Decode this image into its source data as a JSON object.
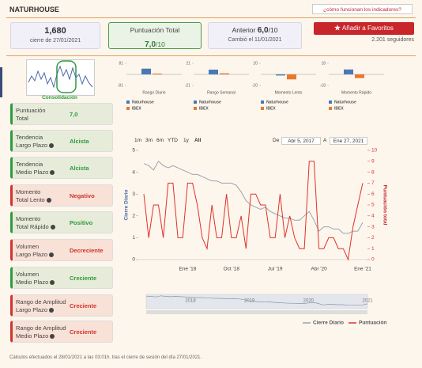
{
  "header": {
    "title": "NATURHOUSE",
    "help_link": "¿cómo funcionan los indicadores?"
  },
  "stats": {
    "close": {
      "value": "1,680",
      "caption": "cierre de 27/01/2021"
    },
    "score": {
      "label": "Puntuación Total",
      "value": "7,0",
      "scale": "/10"
    },
    "previous": {
      "label": "Anterior",
      "value": "6,0",
      "scale": "/10",
      "caption": "Cambió el 11/01/2021"
    },
    "favorite_button": "Añadir a Favoritos",
    "followers": "2.201 seguidores"
  },
  "pattern": {
    "label": "Consolidación"
  },
  "indicators": [
    {
      "label_lines": [
        "Puntuación",
        "Total"
      ],
      "value": "7,0",
      "color": "#2f9a3f",
      "info": false
    },
    {
      "label_lines": [
        "Tendencia",
        "Largo Plazo"
      ],
      "value": "Alcista",
      "color": "#2f9a3f",
      "info": true
    },
    {
      "label_lines": [
        "Tendencia",
        "Medio Plazo"
      ],
      "value": "Alcista",
      "color": "#2f9a3f",
      "info": true
    },
    {
      "label_lines": [
        "Momento",
        "Total Lento"
      ],
      "value": "Negativo",
      "color": "#d0342c",
      "info": true
    },
    {
      "label_lines": [
        "Momento",
        "Total Rápido"
      ],
      "value": "Positivo",
      "color": "#2f9a3f",
      "info": true
    },
    {
      "label_lines": [
        "Volumen",
        "Largo Plazo"
      ],
      "value": "Decreciente",
      "color": "#d0342c",
      "info": true
    },
    {
      "label_lines": [
        "Volumen",
        "Medio Plazo"
      ],
      "value": "Creciente",
      "color": "#2f9a3f",
      "info": true
    },
    {
      "label_lines": [
        "Rango de Amplitud",
        "Largo Plazo"
      ],
      "value": "Creciente",
      "color": "#d0342c",
      "info": true
    },
    {
      "label_lines": [
        "Rango de Amplitud",
        "Medio Plazo"
      ],
      "value": "Creciente",
      "color": "#d0342c",
      "info": true
    }
  ],
  "chart_data": [
    {
      "type": "line",
      "range_buttons": [
        "1m",
        "3m",
        "6m",
        "YTD",
        "1y",
        "All"
      ],
      "date_from_label": "De",
      "date_from": "Abr 5, 2017",
      "date_to_label": "A",
      "date_to": "Ene 27, 2021",
      "ylabel": "Cierre Diario",
      "y2label": "Puntuación total",
      "categories": [
        null,
        null,
        null,
        null,
        null,
        null,
        null,
        null,
        null,
        "Ene '18",
        null,
        null,
        null,
        null,
        null,
        null,
        null,
        null,
        "Oct '18",
        null,
        null,
        null,
        null,
        null,
        null,
        null,
        null,
        "Jul '19",
        null,
        null,
        null,
        null,
        null,
        null,
        null,
        null,
        "Abr '20",
        null,
        null,
        null,
        null,
        null,
        null,
        null,
        null,
        "Ene '21"
      ],
      "series": [
        {
          "name": "Cierre Diario",
          "color": "#9aa4b0",
          "values": [
            4.4,
            4.3,
            4.1,
            4.5,
            4.3,
            4.2,
            4.3,
            4.2,
            4.1,
            4.0,
            3.9,
            3.9,
            3.8,
            3.7,
            3.6,
            3.6,
            3.5,
            3.5,
            3.5,
            3.4,
            3.1,
            2.7,
            2.5,
            2.4,
            2.3,
            2.4,
            2.2,
            2.1,
            2.0,
            1.9,
            1.9,
            1.8,
            1.8,
            2.0,
            2.2,
            1.8,
            1.3,
            1.5,
            1.5,
            1.4,
            1.4,
            1.2,
            1.2,
            1.3,
            1.3,
            1.7
          ]
        },
        {
          "name": "Puntuación",
          "color": "#e0302c",
          "axis": "y2",
          "values": [
            6,
            2,
            5,
            5,
            2,
            7,
            7,
            2,
            2,
            7,
            7,
            5,
            2,
            1,
            5,
            2,
            2,
            6,
            2,
            2,
            4,
            1,
            6,
            6,
            5,
            5,
            2,
            2,
            6,
            2,
            4,
            2,
            1,
            1,
            9,
            9,
            1,
            1,
            2,
            2,
            1,
            1,
            0,
            3,
            5,
            7
          ]
        }
      ],
      "ylim": [
        0,
        5
      ],
      "yticks": [
        0,
        1,
        2,
        3,
        4,
        5
      ],
      "y2lim": [
        0,
        10
      ],
      "y2ticks": [
        0,
        1,
        2,
        3,
        4,
        5,
        6,
        7,
        8,
        9,
        10
      ],
      "navigator_labels": [
        "2018",
        "2019",
        "2020",
        "2021"
      ]
    },
    {
      "type": "bar",
      "title": "Rango Diario",
      "ylim": [
        -81,
        81
      ],
      "yticks": [
        -81,
        81
      ],
      "series": [
        {
          "name": "Naturhouse",
          "color": "#4a78b5",
          "values": [
            42
          ]
        },
        {
          "name": "IBEX",
          "color": "#e8772e",
          "values": [
            6
          ]
        }
      ]
    },
    {
      "type": "bar",
      "title": "Rango Semanal",
      "ylim": [
        -21,
        21
      ],
      "yticks": [
        -21,
        21
      ],
      "series": [
        {
          "name": "Naturhouse",
          "color": "#4a78b5",
          "values": [
            9
          ]
        },
        {
          "name": "IBEX",
          "color": "#e8772e",
          "values": [
            2
          ]
        }
      ]
    },
    {
      "type": "bar",
      "title": "Momento Lento",
      "ylim": [
        -20,
        20
      ],
      "yticks": [
        -20,
        20
      ],
      "series": [
        {
          "name": "Naturhouse",
          "color": "#4a78b5",
          "values": [
            -2
          ]
        },
        {
          "name": "IBEX",
          "color": "#e8772e",
          "values": [
            -9
          ]
        }
      ]
    },
    {
      "type": "bar",
      "title": "Momento Rápido",
      "ylim": [
        -18,
        18
      ],
      "yticks": [
        -18,
        18
      ],
      "series": [
        {
          "name": "Naturhouse",
          "color": "#4a78b5",
          "values": [
            8
          ]
        },
        {
          "name": "IBEX",
          "color": "#e8772e",
          "values": [
            -6
          ]
        }
      ]
    }
  ],
  "footer": "Cálculos efectuados el 28/01/2021 a las 03:01h. tras el cierre de sesión del día 27/01/2021."
}
